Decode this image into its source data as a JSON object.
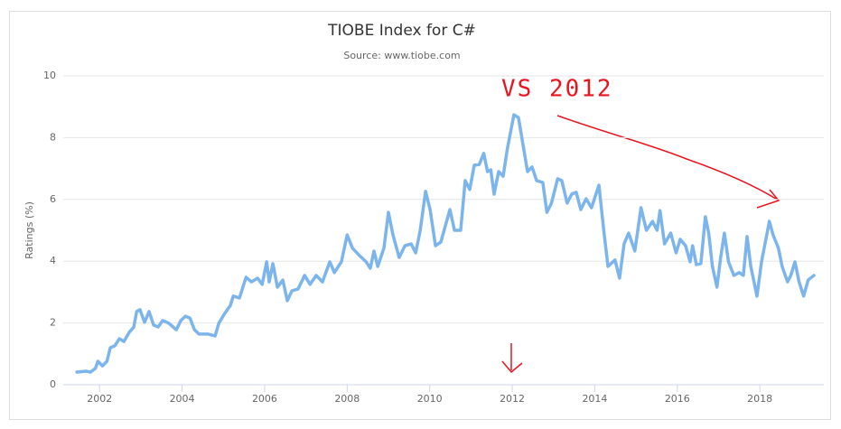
{
  "chart_data": {
    "type": "line",
    "title": "TIOBE Index for C#",
    "subtitle": "Source: www.tiobe.com",
    "y_label": "Ratings (%)",
    "annotations": [
      "VS 2012"
    ],
    "xlim": [
      2001.12,
      2019.55
    ],
    "xticks": [
      2002,
      2004,
      2006,
      2008,
      2010,
      2012,
      2014,
      2016,
      2018
    ],
    "ylim": [
      0,
      10
    ],
    "yticks": [
      0,
      2,
      4,
      6,
      8,
      10
    ],
    "grid": true,
    "x": [
      2001.45,
      2001.67,
      2001.78,
      2001.9,
      2001.96,
      2002.07,
      2002.18,
      2002.26,
      2002.37,
      2002.48,
      2002.59,
      2002.72,
      2002.83,
      2002.9,
      2002.98,
      2003.09,
      2003.2,
      2003.31,
      2003.42,
      2003.53,
      2003.68,
      2003.86,
      2003.97,
      2004.08,
      2004.19,
      2004.3,
      2004.41,
      2004.63,
      2004.8,
      2004.89,
      2005.02,
      2005.17,
      2005.24,
      2005.39,
      2005.55,
      2005.68,
      2005.83,
      2005.94,
      2006.05,
      2006.11,
      2006.2,
      2006.31,
      2006.44,
      2006.55,
      2006.66,
      2006.81,
      2006.97,
      2007.1,
      2007.25,
      2007.4,
      2007.58,
      2007.69,
      2007.86,
      2008.0,
      2008.13,
      2008.3,
      2008.46,
      2008.56,
      2008.65,
      2008.74,
      2008.89,
      2009.0,
      2009.11,
      2009.26,
      2009.4,
      2009.55,
      2009.66,
      2009.77,
      2009.9,
      2010.01,
      2010.14,
      2010.27,
      2010.38,
      2010.49,
      2010.6,
      2010.75,
      2010.86,
      2010.97,
      2011.08,
      2011.2,
      2011.31,
      2011.4,
      2011.48,
      2011.56,
      2011.67,
      2011.78,
      2011.88,
      2012.04,
      2012.15,
      2012.26,
      2012.37,
      2012.48,
      2012.59,
      2012.74,
      2012.84,
      2012.95,
      2013.1,
      2013.2,
      2013.33,
      2013.44,
      2013.55,
      2013.66,
      2013.79,
      2013.92,
      2014.1,
      2014.23,
      2014.32,
      2014.49,
      2014.6,
      2014.71,
      2014.82,
      2014.97,
      2015.12,
      2015.25,
      2015.4,
      2015.51,
      2015.58,
      2015.69,
      2015.84,
      2015.97,
      2016.07,
      2016.2,
      2016.31,
      2016.37,
      2016.46,
      2016.57,
      2016.68,
      2016.76,
      2016.85,
      2016.96,
      2017.05,
      2017.14,
      2017.24,
      2017.37,
      2017.5,
      2017.6,
      2017.69,
      2017.78,
      2017.93,
      2018.04,
      2018.23,
      2018.32,
      2018.45,
      2018.54,
      2018.67,
      2018.75,
      2018.85,
      2018.95,
      2019.06,
      2019.17,
      2019.31
    ],
    "series": [
      {
        "name": "C#",
        "color": "#7cb5ec",
        "values": [
          0.41,
          0.44,
          0.41,
          0.53,
          0.76,
          0.61,
          0.76,
          1.2,
          1.26,
          1.49,
          1.4,
          1.7,
          1.87,
          2.37,
          2.43,
          2.02,
          2.37,
          1.93,
          1.87,
          2.08,
          1.99,
          1.78,
          2.08,
          2.22,
          2.16,
          1.78,
          1.64,
          1.64,
          1.58,
          1.99,
          2.28,
          2.57,
          2.87,
          2.81,
          3.48,
          3.33,
          3.45,
          3.25,
          3.98,
          3.33,
          3.92,
          3.16,
          3.39,
          2.72,
          3.04,
          3.1,
          3.54,
          3.25,
          3.54,
          3.33,
          3.98,
          3.63,
          3.98,
          4.85,
          4.42,
          4.18,
          3.98,
          3.77,
          4.33,
          3.83,
          4.42,
          5.58,
          4.85,
          4.12,
          4.5,
          4.56,
          4.27,
          5.0,
          6.26,
          5.67,
          4.5,
          4.62,
          5.15,
          5.67,
          5.0,
          5.0,
          6.61,
          6.32,
          7.11,
          7.13,
          7.49,
          6.9,
          6.96,
          6.17,
          6.9,
          6.75,
          7.63,
          8.74,
          8.65,
          7.78,
          6.9,
          7.05,
          6.61,
          6.55,
          5.58,
          5.88,
          6.67,
          6.61,
          5.88,
          6.17,
          6.23,
          5.67,
          6.02,
          5.73,
          6.46,
          4.85,
          3.83,
          4.04,
          3.45,
          4.56,
          4.91,
          4.33,
          5.73,
          5.0,
          5.29,
          5.0,
          5.64,
          4.56,
          4.91,
          4.27,
          4.71,
          4.5,
          3.98,
          4.5,
          3.89,
          3.92,
          5.44,
          4.91,
          3.83,
          3.16,
          4.12,
          4.91,
          3.98,
          3.54,
          3.63,
          3.54,
          4.8,
          3.83,
          2.87,
          3.98,
          5.29,
          4.85,
          4.42,
          3.83,
          3.33,
          3.54,
          3.98,
          3.33,
          2.87,
          3.39,
          3.54
        ]
      }
    ]
  }
}
